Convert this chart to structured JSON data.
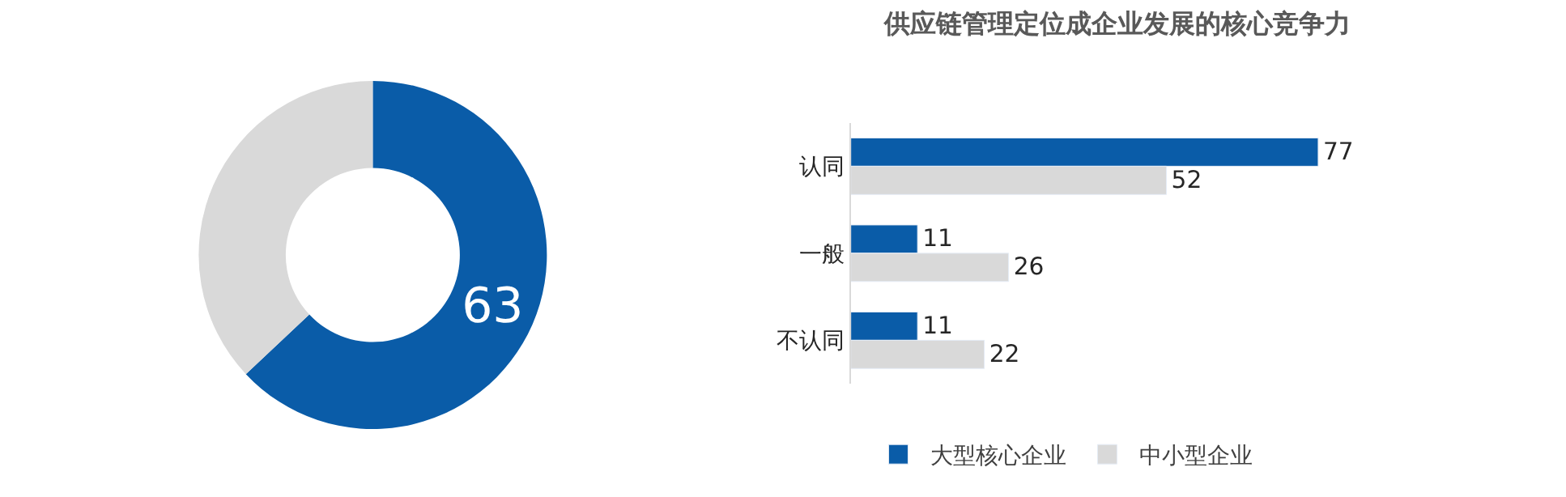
{
  "chart_data": [
    {
      "type": "donut",
      "categories": [
        null,
        null
      ],
      "values": [
        63,
        37
      ],
      "colors": [
        "#0a5ca8",
        "#d9d9d9"
      ],
      "value_labels": [
        "63",
        null
      ]
    },
    {
      "type": "bar",
      "orientation": "horizontal",
      "title": "供应链管理定位成企业发展的核心竞争力",
      "categories": [
        "认同",
        "一般",
        "不认同"
      ],
      "series": [
        {
          "name": "大型核心企业",
          "color": "#0a5ca8",
          "values": [
            77,
            11,
            11
          ]
        },
        {
          "name": "中小型企业",
          "color": "#d9d9d9",
          "values": [
            52,
            26,
            22
          ]
        }
      ],
      "data_labels": true,
      "legend": "bottom",
      "tick_labels": "y"
    }
  ]
}
